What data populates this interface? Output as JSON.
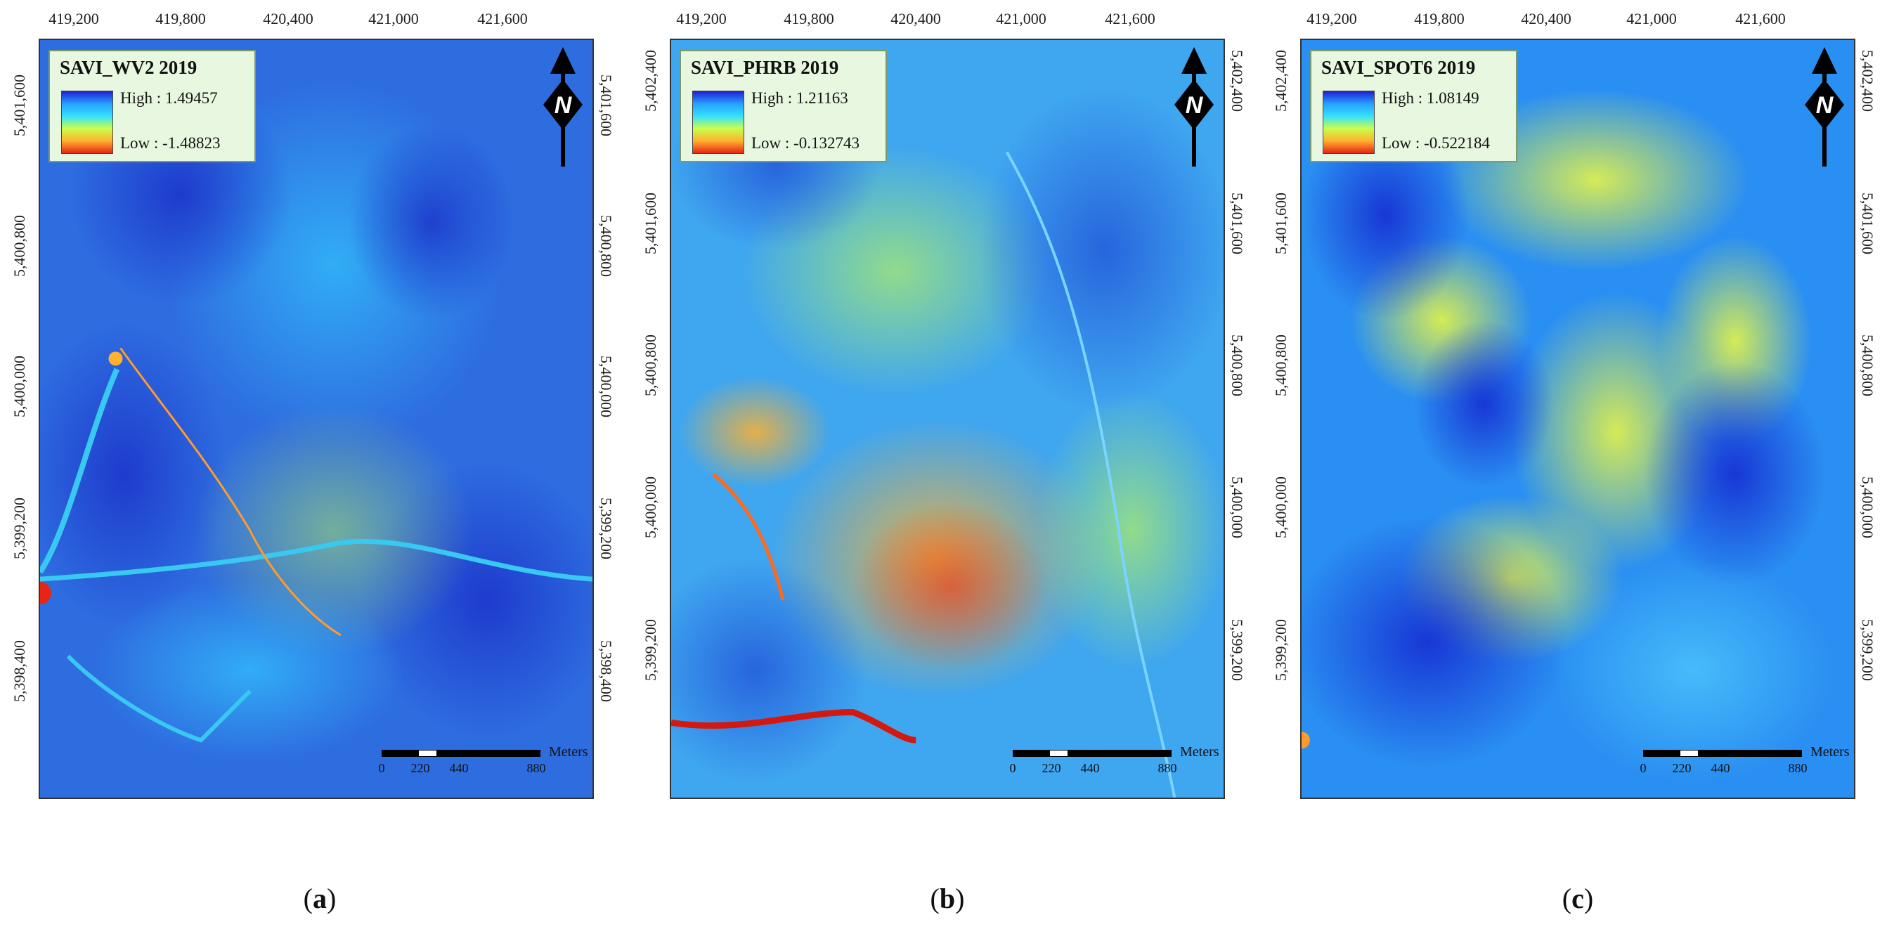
{
  "panels": [
    {
      "legend_title": "SAVI_WV2 2019",
      "high_label": "High : 1.49457",
      "low_label": "Low : -1.48823",
      "ramp": [
        "#1f1fd6",
        "#27a0ff",
        "#33e0ff",
        "#c8ff4a",
        "#ffb22e",
        "#e82414"
      ],
      "x_ticks": [
        "419,200",
        "419,800",
        "420,400",
        "421,000",
        "421,600"
      ],
      "y_ticks_left": [
        "5,401,600",
        "5,400,800",
        "5,400,000",
        "5,399,200",
        "5,398,400"
      ],
      "y_ticks_right": [
        "5,401,600",
        "5,400,800",
        "5,400,000",
        "5,399,200",
        "5,398,400"
      ],
      "scale_labels": [
        "0",
        "220",
        "440",
        "880"
      ],
      "scale_unit": "Meters",
      "caption_letter": "a",
      "base_color": "#2e6de0"
    },
    {
      "legend_title": "SAVI_PHRB 2019",
      "high_label": "High : 1.21163",
      "low_label": "Low : -0.132743",
      "ramp": [
        "#1f1fd6",
        "#27a0ff",
        "#33e0ff",
        "#c8ff4a",
        "#ffb22e",
        "#e82414"
      ],
      "x_ticks": [
        "419,200",
        "419,800",
        "420,400",
        "421,000",
        "421,600"
      ],
      "y_ticks_left": [
        "5,402,400",
        "5,401,600",
        "5,400,800",
        "5,400,000",
        "5,399,200"
      ],
      "y_ticks_right": [
        "5,402,400",
        "5,401,600",
        "5,400,800",
        "5,400,000",
        "5,399,200"
      ],
      "scale_labels": [
        "0",
        "220",
        "440",
        "880"
      ],
      "scale_unit": "Meters",
      "caption_letter": "b",
      "base_color": "#3fa6f0"
    },
    {
      "legend_title": "SAVI_SPOT6 2019",
      "high_label": "High : 1.08149",
      "low_label": "Low : -0.522184",
      "ramp": [
        "#1f1fd6",
        "#27a0ff",
        "#33e0ff",
        "#c8ff4a",
        "#ffb22e",
        "#e82414"
      ],
      "x_ticks": [
        "419,200",
        "419,800",
        "420,400",
        "421,000",
        "421,600"
      ],
      "y_ticks_left": [
        "5,402,400",
        "5,401,600",
        "5,400,800",
        "5,400,000",
        "5,399,200"
      ],
      "y_ticks_right": [
        "5,402,400",
        "5,401,600",
        "5,400,800",
        "5,400,000",
        "5,399,200"
      ],
      "scale_labels": [
        "0",
        "220",
        "440",
        "880"
      ],
      "scale_unit": "Meters",
      "caption_letter": "c",
      "base_color": "#2a8ff2"
    }
  ],
  "north_letter": "N"
}
